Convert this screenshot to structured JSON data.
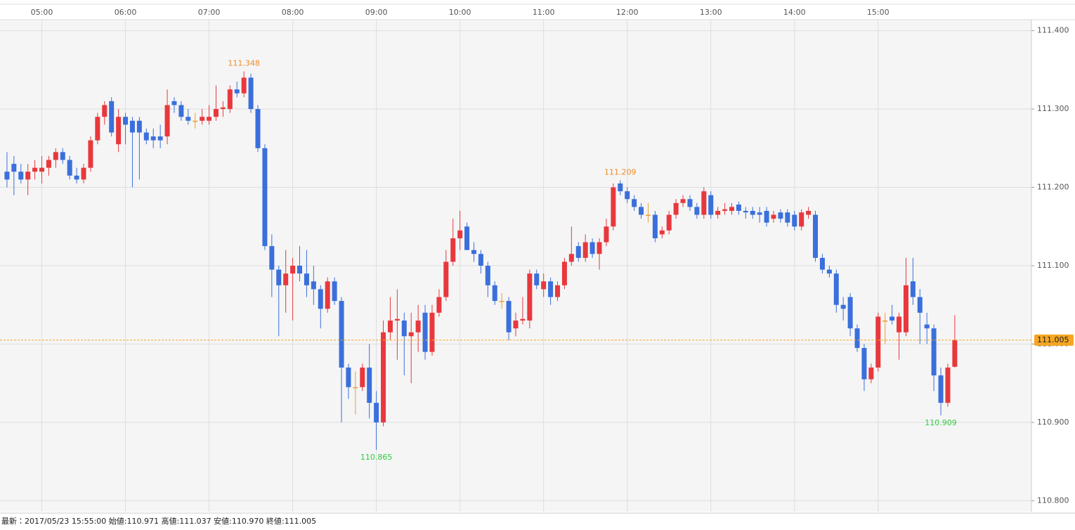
{
  "chart_data": {
    "type": "candlestick",
    "footer": "最新：2017/05/23 15:55:00 始値:110.971 高値:111.037 安値:110.970 終値:111.005",
    "xlim": [
      "04:30",
      "16:50"
    ],
    "xticks": [
      "05:00",
      "06:00",
      "07:00",
      "08:00",
      "09:00",
      "10:00",
      "11:00",
      "12:00",
      "13:00",
      "14:00",
      "15:00"
    ],
    "ylim": [
      110.786,
      111.414
    ],
    "yticks": [
      {
        "value": 110.8,
        "label": "110.800"
      },
      {
        "value": 110.9,
        "label": "110.900"
      },
      {
        "value": 111.0,
        "label": "111.000"
      },
      {
        "value": 111.1,
        "label": "111.100"
      },
      {
        "value": 111.2,
        "label": "111.200"
      },
      {
        "value": 111.3,
        "label": "111.300"
      },
      {
        "value": 111.4,
        "label": "111.400"
      }
    ],
    "grid": true,
    "up_color": "#e8383d",
    "down_color": "#3a6fdc",
    "doji_color": "#e8a030",
    "candle_fields": [
      "time",
      "open",
      "high",
      "low",
      "close"
    ],
    "candles": [
      [
        "04:35",
        111.22,
        111.245,
        111.2,
        111.21
      ],
      [
        "04:40",
        111.23,
        111.24,
        111.19,
        111.22
      ],
      [
        "04:45",
        111.22,
        111.23,
        111.205,
        111.21
      ],
      [
        "04:50",
        111.21,
        111.23,
        111.19,
        111.22
      ],
      [
        "04:55",
        111.22,
        111.235,
        111.21,
        111.225
      ],
      [
        "05:00",
        111.22,
        111.24,
        111.205,
        111.225
      ],
      [
        "05:05",
        111.225,
        111.24,
        111.215,
        111.235
      ],
      [
        "05:10",
        111.235,
        111.25,
        111.225,
        111.245
      ],
      [
        "05:15",
        111.245,
        111.25,
        111.23,
        111.235
      ],
      [
        "05:20",
        111.235,
        111.24,
        111.21,
        111.215
      ],
      [
        "05:25",
        111.215,
        111.225,
        111.205,
        111.21
      ],
      [
        "05:30",
        111.21,
        111.23,
        111.205,
        111.225
      ],
      [
        "05:35",
        111.225,
        111.265,
        111.22,
        111.26
      ],
      [
        "05:40",
        111.26,
        111.295,
        111.255,
        111.29
      ],
      [
        "05:45",
        111.29,
        111.31,
        111.28,
        111.305
      ],
      [
        "05:50",
        111.31,
        111.315,
        111.265,
        111.27
      ],
      [
        "05:55",
        111.255,
        111.3,
        111.245,
        111.29
      ],
      [
        "06:00",
        111.29,
        111.295,
        111.255,
        111.28
      ],
      [
        "06:05",
        111.285,
        111.29,
        111.2,
        111.27
      ],
      [
        "06:10",
        111.285,
        111.29,
        111.21,
        111.27
      ],
      [
        "06:15",
        111.27,
        111.275,
        111.255,
        111.26
      ],
      [
        "06:20",
        111.265,
        111.275,
        111.25,
        111.26
      ],
      [
        "06:25",
        111.265,
        111.28,
        111.25,
        111.26
      ],
      [
        "06:30",
        111.265,
        111.325,
        111.255,
        111.305
      ],
      [
        "06:35",
        111.31,
        111.315,
        111.295,
        111.305
      ],
      [
        "06:40",
        111.305,
        111.31,
        111.285,
        111.29
      ],
      [
        "06:45",
        111.29,
        111.3,
        111.28,
        111.285
      ],
      [
        "06:50",
        111.285,
        111.295,
        111.275,
        111.285
      ],
      [
        "06:55",
        111.285,
        111.3,
        111.28,
        111.29
      ],
      [
        "07:00",
        111.285,
        111.305,
        111.28,
        111.29
      ],
      [
        "07:05",
        111.29,
        111.33,
        111.285,
        111.3
      ],
      [
        "07:10",
        111.3,
        111.31,
        111.29,
        111.302
      ],
      [
        "07:15",
        111.3,
        111.33,
        111.295,
        111.325
      ],
      [
        "07:20",
        111.325,
        111.335,
        111.315,
        111.32
      ],
      [
        "07:25",
        111.32,
        111.348,
        111.315,
        111.34
      ],
      [
        "07:30",
        111.34,
        111.345,
        111.295,
        111.3
      ],
      [
        "07:35",
        111.3,
        111.305,
        111.245,
        111.25
      ],
      [
        "07:40",
        111.25,
        111.255,
        111.12,
        111.125
      ],
      [
        "07:45",
        111.125,
        111.14,
        111.06,
        111.095
      ],
      [
        "07:50",
        111.095,
        111.1,
        111.01,
        111.075
      ],
      [
        "07:55",
        111.075,
        111.12,
        111.04,
        111.09
      ],
      [
        "08:00",
        111.09,
        111.11,
        111.03,
        111.1
      ],
      [
        "08:05",
        111.1,
        111.125,
        111.08,
        111.09
      ],
      [
        "08:10",
        111.09,
        111.12,
        111.06,
        111.075
      ],
      [
        "08:15",
        111.08,
        111.1,
        111.05,
        111.07
      ],
      [
        "08:20",
        111.07,
        111.075,
        111.02,
        111.045
      ],
      [
        "08:25",
        111.045,
        111.085,
        111.04,
        111.08
      ],
      [
        "08:30",
        111.08,
        111.085,
        111.05,
        111.055
      ],
      [
        "08:35",
        111.055,
        111.06,
        110.9,
        110.97
      ],
      [
        "08:40",
        110.97,
        110.975,
        110.93,
        110.945
      ],
      [
        "08:45",
        110.945,
        110.965,
        110.91,
        110.945
      ],
      [
        "08:50",
        110.945,
        110.975,
        110.94,
        110.97
      ],
      [
        "08:55",
        110.97,
        111.0,
        110.905,
        110.925
      ],
      [
        "09:00",
        110.925,
        110.94,
        110.865,
        110.9
      ],
      [
        "09:05",
        110.9,
        111.03,
        110.895,
        111.015
      ],
      [
        "09:10",
        111.015,
        111.06,
        111.005,
        111.03
      ],
      [
        "09:15",
        111.03,
        111.07,
        110.98,
        111.032
      ],
      [
        "09:20",
        111.03,
        111.04,
        110.96,
        111.01
      ],
      [
        "09:25",
        111.01,
        111.04,
        110.95,
        111.015
      ],
      [
        "09:30",
        111.015,
        111.05,
        110.99,
        111.03
      ],
      [
        "09:35",
        111.04,
        111.05,
        110.98,
        110.99
      ],
      [
        "09:40",
        110.99,
        111.05,
        110.985,
        111.04
      ],
      [
        "09:45",
        111.04,
        111.07,
        111.035,
        111.06
      ],
      [
        "09:50",
        111.06,
        111.12,
        111.055,
        111.105
      ],
      [
        "09:55",
        111.105,
        111.16,
        111.1,
        111.135
      ],
      [
        "10:00",
        111.135,
        111.17,
        111.12,
        111.145
      ],
      [
        "10:05",
        111.15,
        111.155,
        111.12,
        111.12
      ],
      [
        "10:10",
        111.12,
        111.13,
        111.105,
        111.115
      ],
      [
        "10:15",
        111.115,
        111.12,
        111.09,
        111.1
      ],
      [
        "10:20",
        111.1,
        111.105,
        111.06,
        111.075
      ],
      [
        "10:25",
        111.075,
        111.08,
        111.05,
        111.055
      ],
      [
        "10:30",
        111.055,
        111.065,
        111.045,
        111.055
      ],
      [
        "10:35",
        111.055,
        111.06,
        111.005,
        111.015
      ],
      [
        "10:40",
        111.02,
        111.04,
        111.01,
        111.03
      ],
      [
        "10:45",
        111.03,
        111.06,
        111.025,
        111.032
      ],
      [
        "10:50",
        111.03,
        111.095,
        111.02,
        111.09
      ],
      [
        "10:55",
        111.09,
        111.095,
        111.07,
        111.075
      ],
      [
        "11:00",
        111.07,
        111.09,
        111.06,
        111.08
      ],
      [
        "11:05",
        111.08,
        111.085,
        111.05,
        111.06
      ],
      [
        "11:10",
        111.06,
        111.08,
        111.055,
        111.075
      ],
      [
        "11:15",
        111.075,
        111.11,
        111.07,
        111.105
      ],
      [
        "11:20",
        111.105,
        111.15,
        111.1,
        111.115
      ],
      [
        "11:25",
        111.125,
        111.13,
        111.105,
        111.11
      ],
      [
        "11:30",
        111.11,
        111.14,
        111.105,
        111.13
      ],
      [
        "11:35",
        111.13,
        111.135,
        111.11,
        111.115
      ],
      [
        "11:40",
        111.115,
        111.135,
        111.095,
        111.13
      ],
      [
        "11:45",
        111.13,
        111.16,
        111.125,
        111.15
      ],
      [
        "11:50",
        111.15,
        111.205,
        111.145,
        111.2
      ],
      [
        "11:55",
        111.205,
        111.209,
        111.19,
        111.195
      ],
      [
        "12:00",
        111.195,
        111.2,
        111.18,
        111.185
      ],
      [
        "12:05",
        111.185,
        111.19,
        111.17,
        111.175
      ],
      [
        "12:10",
        111.175,
        111.18,
        111.16,
        111.165
      ],
      [
        "12:15",
        111.165,
        111.18,
        111.155,
        111.165
      ],
      [
        "12:20",
        111.165,
        111.17,
        111.13,
        111.135
      ],
      [
        "12:25",
        111.14,
        111.15,
        111.135,
        111.145
      ],
      [
        "12:30",
        111.145,
        111.17,
        111.14,
        111.165
      ],
      [
        "12:35",
        111.165,
        111.185,
        111.16,
        111.18
      ],
      [
        "12:40",
        111.18,
        111.19,
        111.175,
        111.185
      ],
      [
        "12:45",
        111.185,
        111.19,
        111.17,
        111.175
      ],
      [
        "12:50",
        111.175,
        111.18,
        111.16,
        111.165
      ],
      [
        "12:55",
        111.165,
        111.2,
        111.16,
        111.195
      ],
      [
        "13:00",
        111.19,
        111.195,
        111.16,
        111.165
      ],
      [
        "13:05",
        111.165,
        111.175,
        111.16,
        111.17
      ],
      [
        "13:10",
        111.17,
        111.18,
        111.165,
        111.172
      ],
      [
        "13:15",
        111.17,
        111.18,
        111.165,
        111.175
      ],
      [
        "13:20",
        111.178,
        111.182,
        111.165,
        111.17
      ],
      [
        "13:25",
        111.17,
        111.175,
        111.16,
        111.168
      ],
      [
        "13:30",
        111.17,
        111.175,
        111.16,
        111.165
      ],
      [
        "13:35",
        111.168,
        111.175,
        111.155,
        111.165
      ],
      [
        "13:40",
        111.17,
        111.175,
        111.15,
        111.155
      ],
      [
        "13:45",
        111.16,
        111.17,
        111.155,
        111.165
      ],
      [
        "13:50",
        111.168,
        111.172,
        111.155,
        111.16
      ],
      [
        "13:55",
        111.168,
        111.172,
        111.15,
        111.155
      ],
      [
        "14:00",
        111.165,
        111.17,
        111.145,
        111.15
      ],
      [
        "14:05",
        111.15,
        111.172,
        111.145,
        111.168
      ],
      [
        "14:10",
        111.165,
        111.175,
        111.16,
        111.17
      ],
      [
        "14:15",
        111.165,
        111.17,
        111.105,
        111.11
      ],
      [
        "14:20",
        111.11,
        111.115,
        111.09,
        111.095
      ],
      [
        "14:25",
        111.095,
        111.1,
        111.085,
        111.09
      ],
      [
        "14:30",
        111.09,
        111.095,
        111.04,
        111.05
      ],
      [
        "14:35",
        111.05,
        111.06,
        111.03,
        111.045
      ],
      [
        "14:40",
        111.06,
        111.065,
        111.01,
        111.02
      ],
      [
        "14:45",
        111.02,
        111.025,
        110.99,
        110.995
      ],
      [
        "14:50",
        110.995,
        111.0,
        110.94,
        110.955
      ],
      [
        "14:55",
        110.955,
        110.975,
        110.95,
        110.97
      ],
      [
        "15:00",
        110.97,
        111.04,
        110.965,
        111.035
      ],
      [
        "15:05",
        111.03,
        111.04,
        111.0,
        111.03
      ],
      [
        "15:10",
        111.035,
        111.05,
        111.025,
        111.03
      ],
      [
        "15:15",
        111.015,
        111.04,
        110.98,
        111.035
      ],
      [
        "15:20",
        111.015,
        111.11,
        111.01,
        111.075
      ],
      [
        "15:25",
        111.08,
        111.11,
        111.05,
        111.06
      ],
      [
        "15:30",
        111.06,
        111.07,
        111.0,
        111.04
      ],
      [
        "15:35",
        111.025,
        111.04,
        111.0,
        111.02
      ],
      [
        "15:40",
        111.02,
        111.025,
        110.94,
        110.96
      ],
      [
        "15:45",
        110.96,
        110.97,
        110.909,
        110.925
      ],
      [
        "15:50",
        110.925,
        110.975,
        110.92,
        110.97
      ],
      [
        "15:55",
        110.971,
        111.037,
        110.97,
        111.005
      ]
    ],
    "annotations": [
      {
        "time": "07:25",
        "value": 111.348,
        "position": "above",
        "color": "#f08a24"
      },
      {
        "time": "11:55",
        "value": 111.209,
        "position": "above",
        "color": "#f08a24"
      },
      {
        "time": "09:00",
        "value": 110.865,
        "position": "below",
        "color": "#2ecc40"
      },
      {
        "time": "15:45",
        "value": 110.909,
        "position": "below",
        "color": "#2ecc40"
      }
    ],
    "last_price": {
      "value": 111.005,
      "color": "#f5a623"
    }
  }
}
